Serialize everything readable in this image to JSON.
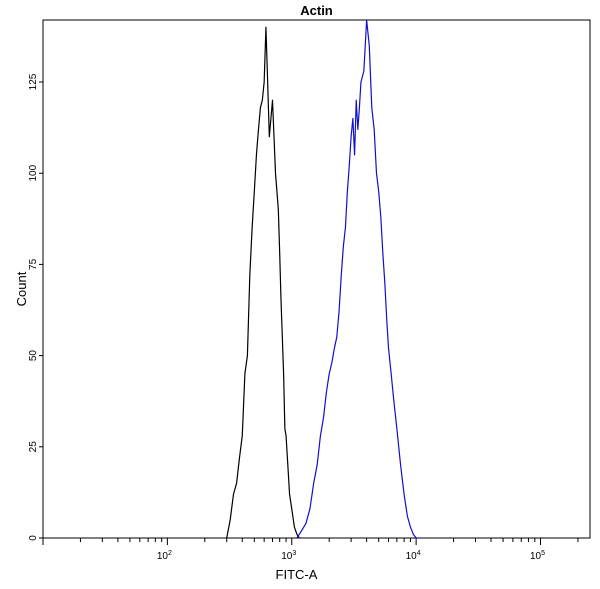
{
  "chart_data": {
    "type": "line",
    "title": "Actin",
    "xlabel": "FITC-A",
    "ylabel": "Count",
    "x_scale": "log",
    "xlim": [
      10,
      250000
    ],
    "ylim": [
      0,
      142
    ],
    "y_ticks": [
      0,
      25,
      50,
      75,
      100,
      125
    ],
    "y_tick_labels": [
      "0",
      "25",
      "50",
      "75",
      "100",
      "125"
    ],
    "x_ticks": [
      100,
      1000,
      10000,
      100000
    ],
    "x_tick_labels": [
      {
        "base": "10",
        "exp": "2"
      },
      {
        "base": "10",
        "exp": "3"
      },
      {
        "base": "10",
        "exp": "4"
      },
      {
        "base": "10",
        "exp": "5"
      }
    ],
    "grid": false,
    "legend": "none",
    "series": [
      {
        "color": "#000000",
        "x": [
          300,
          320,
          340,
          360,
          380,
          400,
          420,
          440,
          460,
          480,
          500,
          520,
          540,
          560,
          580,
          600,
          620,
          640,
          660,
          680,
          700,
          720,
          740,
          760,
          780,
          800,
          820,
          840,
          860,
          880,
          900,
          930,
          960,
          1000,
          1050,
          1100,
          1150
        ],
        "y": [
          0,
          5,
          12,
          15,
          22,
          28,
          45,
          50,
          72,
          85,
          95,
          105,
          112,
          118,
          120,
          125,
          140,
          125,
          110,
          115,
          120,
          110,
          100,
          95,
          90,
          78,
          65,
          55,
          45,
          30,
          28,
          20,
          12,
          8,
          3,
          1,
          0
        ]
      },
      {
        "color": "#1010cc",
        "x": [
          1100,
          1200,
          1300,
          1400,
          1500,
          1600,
          1700,
          1800,
          1900,
          2000,
          2100,
          2200,
          2300,
          2400,
          2500,
          2600,
          2700,
          2800,
          2900,
          3000,
          3100,
          3200,
          3300,
          3400,
          3500,
          3600,
          3800,
          4000,
          4200,
          4400,
          4600,
          4800,
          5000,
          5200,
          5400,
          5600,
          5800,
          6000,
          6300,
          6600,
          7000,
          7500,
          8000,
          8500,
          9000,
          9500,
          10000,
          10500
        ],
        "y": [
          0,
          2,
          4,
          8,
          15,
          20,
          28,
          33,
          40,
          45,
          48,
          52,
          55,
          62,
          72,
          80,
          85,
          95,
          102,
          110,
          115,
          105,
          120,
          112,
          118,
          125,
          128,
          142,
          135,
          118,
          112,
          100,
          95,
          88,
          78,
          70,
          60,
          52,
          45,
          38,
          30,
          20,
          12,
          6,
          3,
          1,
          0,
          0
        ]
      }
    ]
  }
}
